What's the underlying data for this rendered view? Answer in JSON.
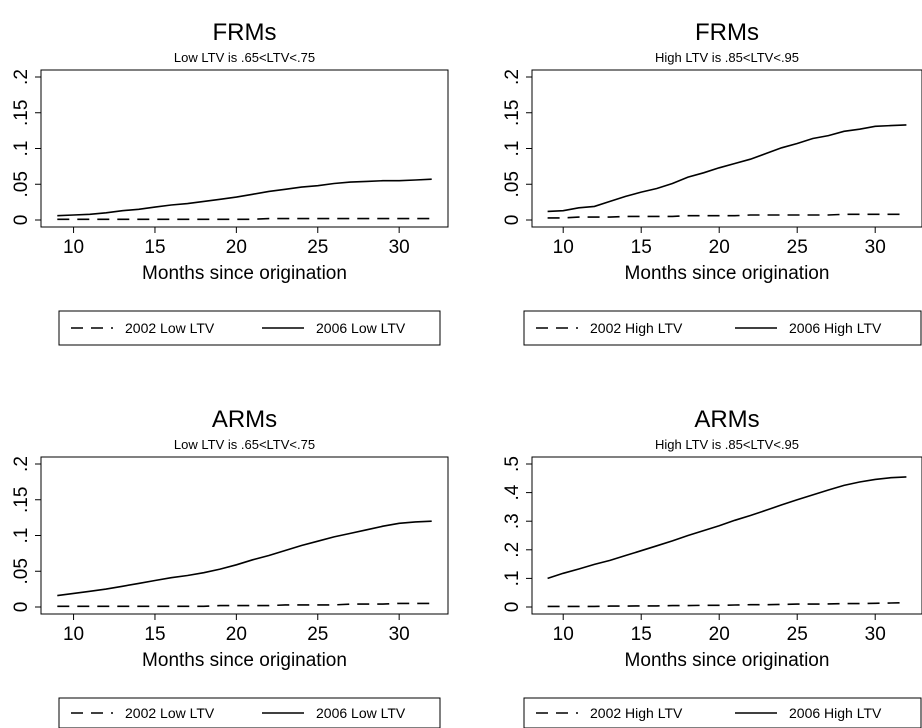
{
  "xlabel": "Months since origination",
  "chart_data": [
    {
      "type": "line",
      "title": "FRMs",
      "subtitle": "Low LTV is .65<LTV<.75",
      "xlabel": "Months since origination",
      "ylabel": "",
      "xlim": [
        8,
        33
      ],
      "ylim": [
        0,
        0.2
      ],
      "xticks": [
        10,
        15,
        20,
        25,
        30
      ],
      "yticks": [
        0,
        0.05,
        0.1,
        0.15,
        0.2
      ],
      "ytick_labels": [
        "0",
        ".05",
        ".1",
        ".15",
        ".2"
      ],
      "x": [
        9,
        10,
        11,
        12,
        13,
        14,
        15,
        16,
        17,
        18,
        19,
        20,
        21,
        22,
        23,
        24,
        25,
        26,
        27,
        28,
        29,
        30,
        31,
        32
      ],
      "series": [
        {
          "name": "2002 Low LTV",
          "style": "dashed",
          "values": [
            0.001,
            0.001,
            0.001,
            0.001,
            0.001,
            0.001,
            0.001,
            0.001,
            0.001,
            0.001,
            0.001,
            0.001,
            0.001,
            0.002,
            0.002,
            0.002,
            0.002,
            0.002,
            0.002,
            0.002,
            0.002,
            0.002,
            0.002,
            0.002
          ]
        },
        {
          "name": "2006 Low LTV",
          "style": "solid",
          "values": [
            0.006,
            0.007,
            0.008,
            0.01,
            0.013,
            0.015,
            0.018,
            0.021,
            0.023,
            0.026,
            0.029,
            0.032,
            0.036,
            0.04,
            0.043,
            0.046,
            0.048,
            0.051,
            0.053,
            0.054,
            0.055,
            0.055,
            0.056,
            0.057
          ]
        }
      ],
      "legend": "bottom"
    },
    {
      "type": "line",
      "title": "FRMs",
      "subtitle": "High LTV is .85<LTV<.95",
      "xlabel": "Months since origination",
      "ylabel": "",
      "xlim": [
        8,
        33
      ],
      "ylim": [
        0,
        0.2
      ],
      "xticks": [
        10,
        15,
        20,
        25,
        30
      ],
      "yticks": [
        0,
        0.05,
        0.1,
        0.15,
        0.2
      ],
      "ytick_labels": [
        "0",
        ".05",
        ".1",
        ".15",
        ".2"
      ],
      "x": [
        9,
        10,
        11,
        12,
        13,
        14,
        15,
        16,
        17,
        18,
        19,
        20,
        21,
        22,
        23,
        24,
        25,
        26,
        27,
        28,
        29,
        30,
        31,
        32
      ],
      "series": [
        {
          "name": "2002 High LTV",
          "style": "dashed",
          "values": [
            0.003,
            0.003,
            0.004,
            0.004,
            0.004,
            0.005,
            0.005,
            0.005,
            0.005,
            0.006,
            0.006,
            0.006,
            0.006,
            0.007,
            0.007,
            0.007,
            0.007,
            0.007,
            0.007,
            0.008,
            0.008,
            0.008,
            0.008,
            0.008
          ]
        },
        {
          "name": "2006 High LTV",
          "style": "solid",
          "values": [
            0.012,
            0.013,
            0.017,
            0.019,
            0.026,
            0.033,
            0.039,
            0.044,
            0.051,
            0.06,
            0.066,
            0.073,
            0.079,
            0.085,
            0.093,
            0.101,
            0.107,
            0.114,
            0.118,
            0.124,
            0.127,
            0.131,
            0.132,
            0.133
          ]
        }
      ],
      "legend": "bottom"
    },
    {
      "type": "line",
      "title": "ARMs",
      "subtitle": "Low LTV is .65<LTV<.75",
      "xlabel": "Months since origination",
      "ylabel": "",
      "xlim": [
        8,
        33
      ],
      "ylim": [
        0,
        0.2
      ],
      "xticks": [
        10,
        15,
        20,
        25,
        30
      ],
      "yticks": [
        0,
        0.05,
        0.1,
        0.15,
        0.2
      ],
      "ytick_labels": [
        "0",
        ".05",
        ".1",
        ".15",
        ".2"
      ],
      "x": [
        9,
        10,
        11,
        12,
        13,
        14,
        15,
        16,
        17,
        18,
        19,
        20,
        21,
        22,
        23,
        24,
        25,
        26,
        27,
        28,
        29,
        30,
        31,
        32
      ],
      "series": [
        {
          "name": "2002 Low LTV",
          "style": "dashed",
          "values": [
            0.001,
            0.001,
            0.001,
            0.001,
            0.001,
            0.001,
            0.001,
            0.001,
            0.001,
            0.001,
            0.002,
            0.002,
            0.002,
            0.002,
            0.003,
            0.003,
            0.003,
            0.003,
            0.004,
            0.004,
            0.004,
            0.005,
            0.005,
            0.005
          ]
        },
        {
          "name": "2006 Low LTV",
          "style": "solid",
          "values": [
            0.016,
            0.019,
            0.022,
            0.025,
            0.029,
            0.033,
            0.037,
            0.041,
            0.044,
            0.048,
            0.053,
            0.059,
            0.066,
            0.072,
            0.079,
            0.086,
            0.092,
            0.098,
            0.103,
            0.108,
            0.113,
            0.117,
            0.119,
            0.12
          ]
        }
      ],
      "legend": "bottom"
    },
    {
      "type": "line",
      "title": "ARMs",
      "subtitle": "High LTV is .85<LTV<.95",
      "xlabel": "Months since origination",
      "ylabel": "",
      "xlim": [
        8,
        33
      ],
      "ylim": [
        0,
        0.5
      ],
      "xticks": [
        10,
        15,
        20,
        25,
        30
      ],
      "yticks": [
        0,
        0.1,
        0.2,
        0.3,
        0.4,
        0.5
      ],
      "ytick_labels": [
        "0",
        ".1",
        ".2",
        ".3",
        ".4",
        ".5"
      ],
      "x": [
        9,
        10,
        11,
        12,
        13,
        14,
        15,
        16,
        17,
        18,
        19,
        20,
        21,
        22,
        23,
        24,
        25,
        26,
        27,
        28,
        29,
        30,
        31,
        32
      ],
      "series": [
        {
          "name": "2002 High LTV",
          "style": "dashed",
          "values": [
            0.002,
            0.002,
            0.002,
            0.002,
            0.003,
            0.003,
            0.004,
            0.004,
            0.005,
            0.005,
            0.006,
            0.006,
            0.007,
            0.008,
            0.008,
            0.009,
            0.01,
            0.01,
            0.011,
            0.012,
            0.012,
            0.013,
            0.014,
            0.015
          ]
        },
        {
          "name": "2006 High LTV",
          "style": "solid",
          "values": [
            0.1,
            0.118,
            0.133,
            0.149,
            0.163,
            0.18,
            0.197,
            0.214,
            0.231,
            0.25,
            0.267,
            0.284,
            0.303,
            0.32,
            0.338,
            0.357,
            0.375,
            0.392,
            0.409,
            0.425,
            0.437,
            0.446,
            0.452,
            0.455
          ]
        }
      ],
      "legend": "bottom"
    }
  ]
}
